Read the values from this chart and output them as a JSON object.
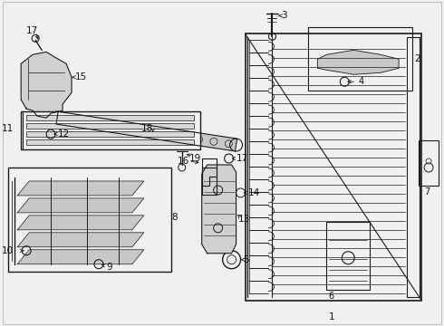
{
  "bg_color": "#f0f0f0",
  "line_color": "#1a1a1a",
  "text_color": "#111111",
  "fig_width": 4.9,
  "fig_height": 3.6,
  "dpi": 100
}
